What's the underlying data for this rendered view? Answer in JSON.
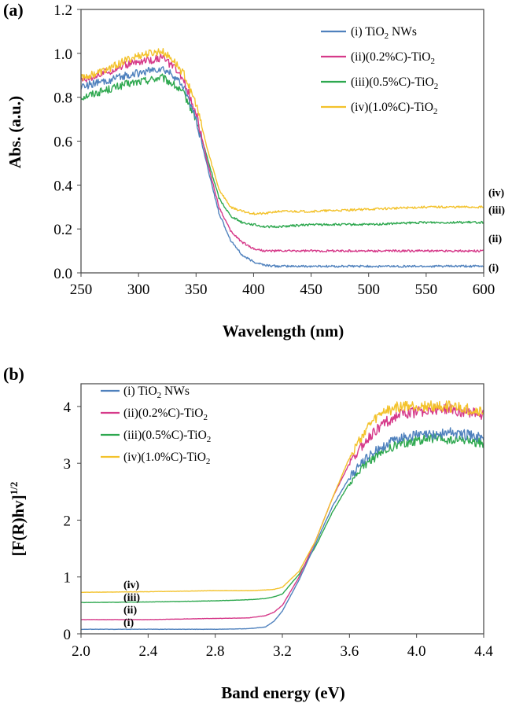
{
  "chart_data": [
    {
      "type": "line",
      "panel_label": "(a)",
      "xlabel": "Wavelength (nm)",
      "ylabel": "Abs. (a.u.)",
      "xlim": [
        250,
        600
      ],
      "ylim": [
        0.0,
        1.2
      ],
      "x_ticks": [
        "250",
        "300",
        "350",
        "400",
        "450",
        "500",
        "550",
        "600"
      ],
      "y_ticks": [
        "0.0",
        "0.2",
        "0.4",
        "0.6",
        "0.8",
        "1.0",
        "1.2"
      ],
      "grid": false,
      "legend_position": "top-right",
      "series": [
        {
          "id": "i",
          "name_prefix": "(i)  TiO",
          "name_sub": "2",
          "name_suffix": " NWs",
          "tag": "(i)",
          "color": "#4f81bd",
          "x": [
            250,
            270,
            290,
            300,
            310,
            320,
            330,
            340,
            350,
            360,
            370,
            380,
            390,
            400,
            410,
            420,
            450,
            500,
            550,
            600
          ],
          "y": [
            0.85,
            0.87,
            0.9,
            0.91,
            0.92,
            0.93,
            0.9,
            0.84,
            0.7,
            0.48,
            0.27,
            0.15,
            0.08,
            0.05,
            0.035,
            0.03,
            0.03,
            0.03,
            0.03,
            0.03
          ]
        },
        {
          "id": "ii",
          "name_prefix": "(ii)(0.2%C)-TiO",
          "name_sub": "2",
          "name_suffix": "",
          "tag": "(ii)",
          "color": "#d63a8a",
          "x": [
            250,
            270,
            290,
            300,
            310,
            320,
            330,
            340,
            350,
            360,
            370,
            380,
            390,
            400,
            410,
            420,
            450,
            500,
            550,
            600
          ],
          "y": [
            0.88,
            0.91,
            0.95,
            0.96,
            0.97,
            0.98,
            0.94,
            0.87,
            0.73,
            0.5,
            0.3,
            0.19,
            0.14,
            0.11,
            0.1,
            0.1,
            0.1,
            0.1,
            0.1,
            0.1
          ]
        },
        {
          "id": "iii",
          "name_prefix": "(iii)(0.5%C)-TiO",
          "name_sub": "2",
          "name_suffix": "",
          "tag": "(iii)",
          "color": "#2ea84f",
          "x": [
            250,
            270,
            290,
            300,
            310,
            320,
            330,
            340,
            350,
            360,
            370,
            380,
            390,
            400,
            410,
            420,
            450,
            500,
            550,
            600
          ],
          "y": [
            0.8,
            0.83,
            0.86,
            0.87,
            0.88,
            0.89,
            0.86,
            0.81,
            0.7,
            0.52,
            0.34,
            0.26,
            0.23,
            0.22,
            0.21,
            0.21,
            0.22,
            0.22,
            0.23,
            0.23
          ]
        },
        {
          "id": "iv",
          "name_prefix": "(iv)(1.0%C)-TiO",
          "name_sub": "2",
          "name_suffix": "",
          "tag": "(iv)",
          "color": "#f3c22b",
          "x": [
            250,
            270,
            290,
            300,
            310,
            320,
            330,
            340,
            350,
            360,
            370,
            380,
            390,
            400,
            410,
            420,
            450,
            500,
            550,
            600
          ],
          "y": [
            0.89,
            0.92,
            0.97,
            0.99,
            1.0,
            1.01,
            0.97,
            0.9,
            0.77,
            0.56,
            0.38,
            0.3,
            0.28,
            0.27,
            0.27,
            0.28,
            0.28,
            0.29,
            0.3,
            0.3
          ]
        }
      ]
    },
    {
      "type": "line",
      "panel_label": "(b)",
      "xlabel": "Band energy (eV)",
      "ylabel_main": "[F(R)hv]",
      "ylabel_sup": "1/2",
      "xlim": [
        2.0,
        4.4
      ],
      "ylim": [
        0,
        4.4
      ],
      "x_ticks": [
        "2.0",
        "2.4",
        "2.8",
        "3.2",
        "3.6",
        "4.0",
        "4.4"
      ],
      "y_ticks": [
        "0",
        "1",
        "2",
        "3",
        "4"
      ],
      "grid": false,
      "legend_position": "top-left",
      "series": [
        {
          "id": "i",
          "name_prefix": "(i)  TiO",
          "name_sub": "2",
          "name_suffix": " NWs",
          "tag": "(i)",
          "color": "#4f81bd",
          "x": [
            2.0,
            2.4,
            2.8,
            3.0,
            3.1,
            3.15,
            3.2,
            3.3,
            3.4,
            3.5,
            3.6,
            3.7,
            3.8,
            3.9,
            4.0,
            4.1,
            4.2,
            4.3,
            4.4
          ],
          "y": [
            0.08,
            0.08,
            0.08,
            0.09,
            0.12,
            0.22,
            0.4,
            0.95,
            1.6,
            2.25,
            2.75,
            3.1,
            3.3,
            3.45,
            3.5,
            3.5,
            3.55,
            3.5,
            3.45
          ]
        },
        {
          "id": "ii",
          "name_prefix": "(ii)(0.2%C)-TiO",
          "name_sub": "2",
          "name_suffix": "",
          "tag": "(ii)",
          "color": "#d63a8a",
          "x": [
            2.0,
            2.4,
            2.8,
            3.0,
            3.1,
            3.15,
            3.2,
            3.3,
            3.4,
            3.5,
            3.6,
            3.7,
            3.8,
            3.9,
            4.0,
            4.1,
            4.2,
            4.3,
            4.4
          ],
          "y": [
            0.25,
            0.25,
            0.27,
            0.28,
            0.32,
            0.38,
            0.5,
            1.0,
            1.65,
            2.4,
            3.0,
            3.4,
            3.7,
            3.85,
            3.9,
            3.95,
            3.95,
            3.9,
            3.85
          ]
        },
        {
          "id": "iii",
          "name_prefix": "(iii)(0.5%C)-TiO",
          "name_sub": "2",
          "name_suffix": "",
          "tag": "(iii)",
          "color": "#2ea84f",
          "x": [
            2.0,
            2.4,
            2.8,
            3.0,
            3.1,
            3.15,
            3.2,
            3.3,
            3.4,
            3.5,
            3.6,
            3.7,
            3.8,
            3.9,
            4.0,
            4.1,
            4.2,
            4.3,
            4.4
          ],
          "y": [
            0.55,
            0.56,
            0.58,
            0.6,
            0.62,
            0.65,
            0.7,
            1.05,
            1.55,
            2.15,
            2.65,
            3.0,
            3.2,
            3.35,
            3.4,
            3.45,
            3.4,
            3.4,
            3.35
          ]
        },
        {
          "id": "iv",
          "name_prefix": "(iv)(1.0%C)-TiO",
          "name_sub": "2",
          "name_suffix": "",
          "tag": "(iv)",
          "color": "#f3c22b",
          "x": [
            2.0,
            2.4,
            2.8,
            3.0,
            3.1,
            3.15,
            3.2,
            3.3,
            3.4,
            3.5,
            3.6,
            3.7,
            3.8,
            3.9,
            4.0,
            4.1,
            4.2,
            4.3,
            4.4
          ],
          "y": [
            0.73,
            0.74,
            0.76,
            0.76,
            0.77,
            0.78,
            0.82,
            1.1,
            1.65,
            2.4,
            3.1,
            3.6,
            3.9,
            4.0,
            4.0,
            4.0,
            4.0,
            3.95,
            3.9
          ]
        }
      ]
    }
  ]
}
